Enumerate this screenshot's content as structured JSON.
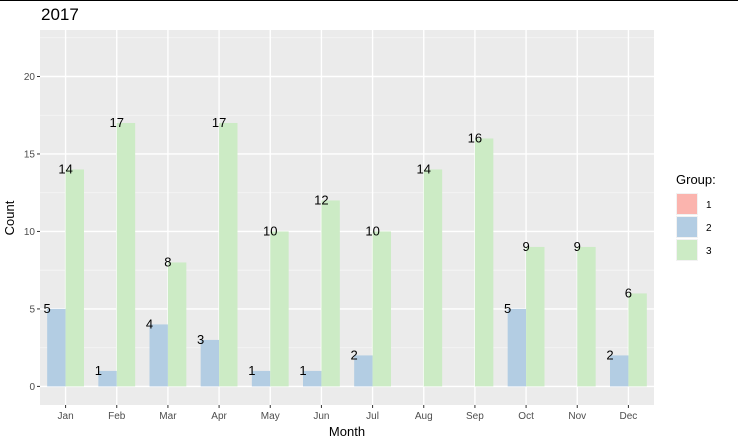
{
  "chart_data": {
    "type": "bar",
    "title": "2017",
    "xlabel": "Month",
    "ylabel": "Count",
    "categories": [
      "Jan",
      "Feb",
      "Mar",
      "Apr",
      "May",
      "Jun",
      "Jul",
      "Aug",
      "Sep",
      "Oct",
      "Nov",
      "Dec"
    ],
    "ylim": [
      -1.2,
      23
    ],
    "yticks": [
      0,
      5,
      10,
      15,
      20
    ],
    "grid": true,
    "legend": {
      "title": "Group:",
      "placement": "right",
      "entries": [
        {
          "label": "1",
          "color": "#FBB4AE"
        },
        {
          "label": "2",
          "color": "#B3CDE3"
        },
        {
          "label": "3",
          "color": "#CCEBC5"
        }
      ]
    },
    "series": [
      {
        "name": "2",
        "color": "#B3CDE3",
        "values": [
          5,
          1,
          4,
          3,
          1,
          1,
          2,
          null,
          null,
          5,
          null,
          2
        ]
      },
      {
        "name": "3",
        "color": "#CCEBC5",
        "values": [
          14,
          17,
          8,
          17,
          10,
          12,
          10,
          14,
          16,
          9,
          9,
          6
        ]
      }
    ]
  }
}
